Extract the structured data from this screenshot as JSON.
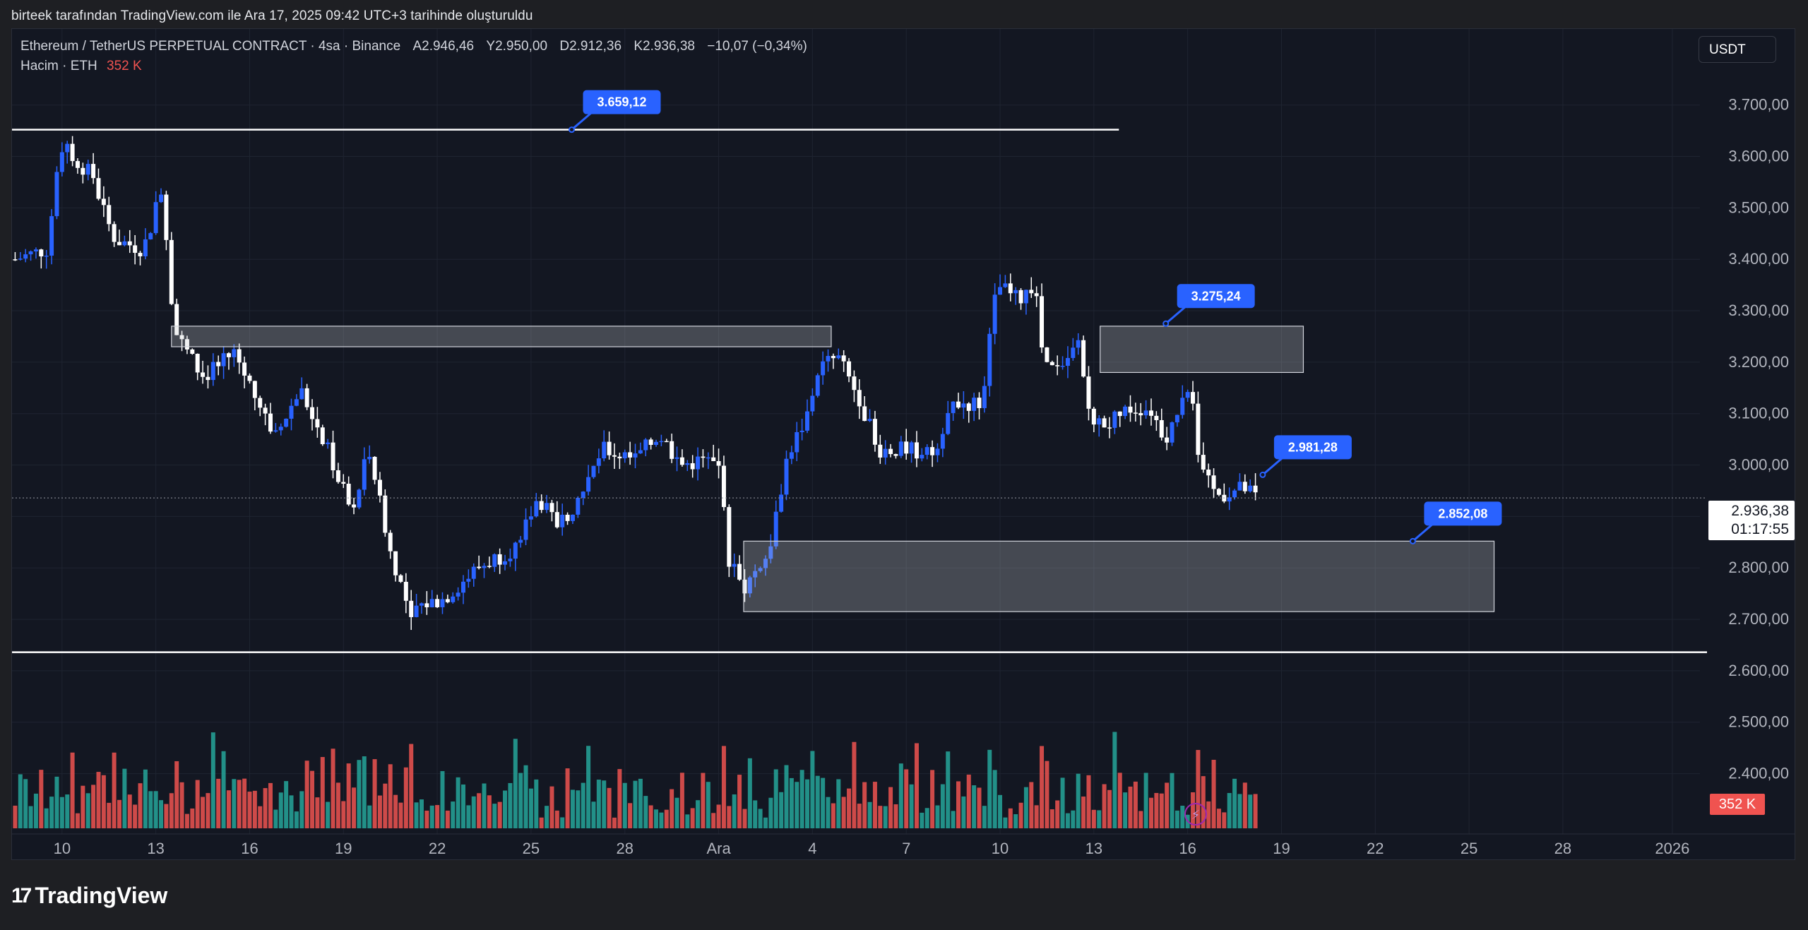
{
  "caption": "birteek tarafından TradingView.com ile Ara 17, 2025 09:42 UTC+3 tarihinde oluşturuldu",
  "header": {
    "symbol": "Ethereum / TetherUS PERPETUAL CONTRACT · 4sa · Binance",
    "o_label": "A",
    "o_value": "2.946,46",
    "h_label": "Y",
    "h_value": "2.950,00",
    "l_label": "D",
    "l_value": "2.912,36",
    "c_label": "K",
    "c_value": "2.936,38",
    "change": "−10,07 (−0,34%)",
    "volume_label": "Hacim · ETH",
    "volume_value": "352 K"
  },
  "quote_currency": "USDT",
  "last_price": "2.936,38",
  "countdown": "01:17:55",
  "volume_tag": "352 K",
  "logo_text": "TradingView",
  "colors": {
    "background": "#131722",
    "up_candle": "#2962ff",
    "down_candle": "#ffffff",
    "vol_up": "#26a69a",
    "vol_down": "#f05350",
    "label_bg": "#2962ff"
  },
  "chart_data": {
    "type": "candlestick",
    "y_axis": {
      "ticks": [
        "3.700,00",
        "3.600,00",
        "3.500,00",
        "3.400,00",
        "3.300,00",
        "3.200,00",
        "3.100,00",
        "3.000,00",
        "2.900,00",
        "2.800,00",
        "2.700,00",
        "2.600,00",
        "2.500,00",
        "2.400,00"
      ],
      "tick_values": [
        3700,
        3600,
        3500,
        3400,
        3300,
        3200,
        3100,
        3000,
        2900,
        2800,
        2700,
        2600,
        2500,
        2400
      ],
      "range": [
        2350,
        3760
      ]
    },
    "x_axis": {
      "ticks": [
        "10",
        "13",
        "16",
        "19",
        "22",
        "25",
        "28",
        "Ara",
        "4",
        "7",
        "10",
        "13",
        "16",
        "19",
        "22",
        "25",
        "28",
        "2026"
      ],
      "tick_days": [
        0,
        3,
        6,
        9,
        12,
        15,
        18,
        21,
        24,
        27,
        30,
        33,
        36,
        39,
        42,
        45,
        48,
        51.5
      ],
      "range_days": [
        -1.6,
        53.4
      ]
    },
    "price_path": [
      {
        "day": -1.5,
        "price": 3400
      },
      {
        "day": -0.5,
        "price": 3420
      },
      {
        "day": 0,
        "price": 3620
      },
      {
        "day": 1,
        "price": 3560
      },
      {
        "day": 1.6,
        "price": 3440
      },
      {
        "day": 2.6,
        "price": 3420
      },
      {
        "day": 3.2,
        "price": 3540
      },
      {
        "day": 3.6,
        "price": 3260
      },
      {
        "day": 4.5,
        "price": 3170
      },
      {
        "day": 5.5,
        "price": 3220
      },
      {
        "day": 6.3,
        "price": 3120
      },
      {
        "day": 6.8,
        "price": 3050
      },
      {
        "day": 7.6,
        "price": 3150
      },
      {
        "day": 8.3,
        "price": 3060
      },
      {
        "day": 9.3,
        "price": 2900
      },
      {
        "day": 9.8,
        "price": 3040
      },
      {
        "day": 10.5,
        "price": 2830
      },
      {
        "day": 11.1,
        "price": 2720
      },
      {
        "day": 12.2,
        "price": 2740
      },
      {
        "day": 13.3,
        "price": 2800
      },
      {
        "day": 14.5,
        "price": 2840
      },
      {
        "day": 15.2,
        "price": 2940
      },
      {
        "day": 15.8,
        "price": 2880
      },
      {
        "day": 16.6,
        "price": 2940
      },
      {
        "day": 17.3,
        "price": 3030
      },
      {
        "day": 18.3,
        "price": 3010
      },
      {
        "day": 19.1,
        "price": 3060
      },
      {
        "day": 19.8,
        "price": 3000
      },
      {
        "day": 20.6,
        "price": 3010
      },
      {
        "day": 21.1,
        "price": 2990
      },
      {
        "day": 21.3,
        "price": 2820
      },
      {
        "day": 21.8,
        "price": 2760
      },
      {
        "day": 22.6,
        "price": 2830
      },
      {
        "day": 23.2,
        "price": 3020
      },
      {
        "day": 23.8,
        "price": 3090
      },
      {
        "day": 24.2,
        "price": 3190
      },
      {
        "day": 24.8,
        "price": 3210
      },
      {
        "day": 25.5,
        "price": 3130
      },
      {
        "day": 26.1,
        "price": 3030
      },
      {
        "day": 27.2,
        "price": 3030
      },
      {
        "day": 27.8,
        "price": 3020
      },
      {
        "day": 28.5,
        "price": 3120
      },
      {
        "day": 29.4,
        "price": 3120
      },
      {
        "day": 29.9,
        "price": 3350
      },
      {
        "day": 30.6,
        "price": 3320
      },
      {
        "day": 31.1,
        "price": 3350
      },
      {
        "day": 31.4,
        "price": 3190
      },
      {
        "day": 32,
        "price": 3180
      },
      {
        "day": 32.5,
        "price": 3240
      },
      {
        "day": 32.9,
        "price": 3080
      },
      {
        "day": 33.5,
        "price": 3080
      },
      {
        "day": 34.1,
        "price": 3110
      },
      {
        "day": 34.8,
        "price": 3110
      },
      {
        "day": 35.3,
        "price": 3050
      },
      {
        "day": 36.1,
        "price": 3170
      },
      {
        "day": 36.4,
        "price": 2990
      },
      {
        "day": 36.9,
        "price": 2940
      },
      {
        "day": 37.8,
        "price": 2955
      },
      {
        "day": 38.2,
        "price": 2936
      }
    ],
    "volume_range": [
      0,
      100
    ],
    "horizontal_lines": [
      {
        "price": 3652
      },
      {
        "price": 2636
      }
    ],
    "zones": [
      {
        "day_start": 3.5,
        "day_end": 24.6,
        "price_top": 3270,
        "price_bottom": 3230
      },
      {
        "day_start": 33.2,
        "day_end": 39.7,
        "price_top": 3270,
        "price_bottom": 3180
      },
      {
        "day_start": 21.8,
        "day_end": 45.8,
        "price_top": 2852,
        "price_bottom": 2715
      }
    ],
    "price_labels": [
      {
        "text": "3.659,12",
        "day": 16.3,
        "price": 3652
      },
      {
        "text": "3.275,24",
        "day": 35.3,
        "price": 3275
      },
      {
        "text": "2.981,28",
        "day": 38.4,
        "price": 2981
      },
      {
        "text": "2.852,08",
        "day": 43.2,
        "price": 2852
      }
    ]
  }
}
